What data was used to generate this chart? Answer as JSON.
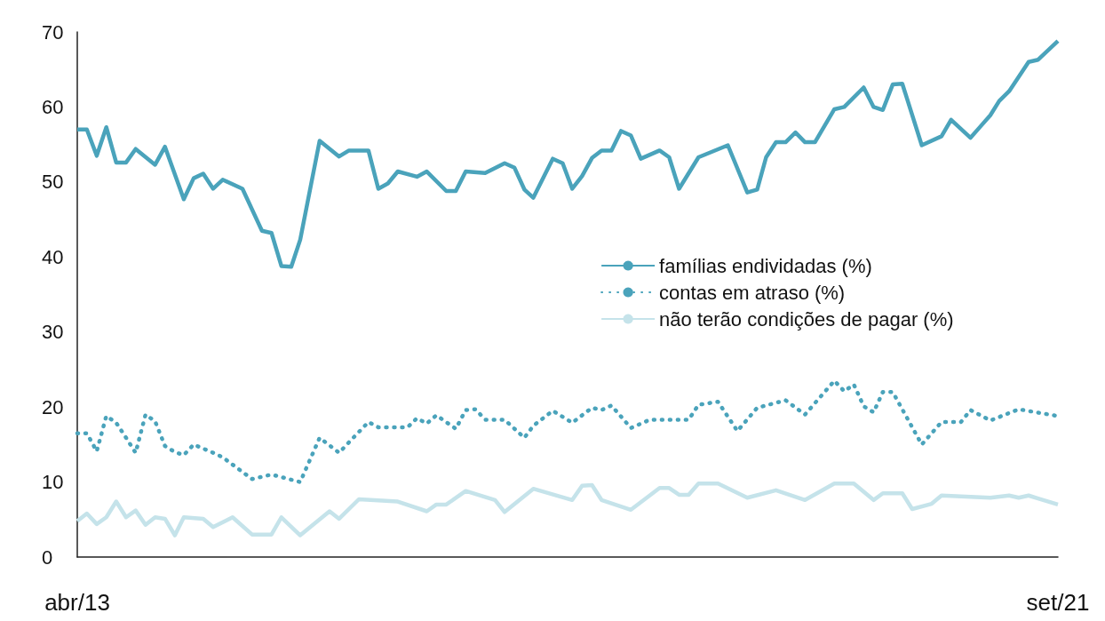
{
  "chart_data": {
    "type": "line",
    "xlim": [
      "2013-04",
      "2021-09"
    ],
    "xticks": [
      {
        "value": "2013-04",
        "label": "abr/13"
      },
      {
        "value": "2021-09",
        "label": "set/21"
      }
    ],
    "ylim": [
      0,
      70
    ],
    "yticks": [
      0,
      10,
      20,
      30,
      40,
      50,
      60,
      70
    ],
    "grid": false,
    "legend": "right",
    "marker": "none",
    "series": [
      {
        "name": "famílias endividadas (%)",
        "color": "#4aa3bb",
        "line_style": "solid",
        "x": [
          "2013-04",
          "2013-05",
          "2013-06",
          "2013-07",
          "2013-08",
          "2013-09",
          "2013-10",
          "2013-12",
          "2014-01",
          "2014-03",
          "2014-04",
          "2014-05",
          "2014-06",
          "2014-07",
          "2014-09",
          "2014-11",
          "2014-12",
          "2015-01",
          "2015-02",
          "2015-03",
          "2015-05",
          "2015-07",
          "2015-08",
          "2015-10",
          "2015-11",
          "2015-12",
          "2016-01",
          "2016-03",
          "2016-04",
          "2016-06",
          "2016-07",
          "2016-08",
          "2016-10",
          "2016-12",
          "2017-01",
          "2017-02",
          "2017-03",
          "2017-05",
          "2017-06",
          "2017-07",
          "2017-08",
          "2017-09",
          "2017-10",
          "2017-11",
          "2017-12",
          "2018-01",
          "2018-02",
          "2018-04",
          "2018-05",
          "2018-06",
          "2018-08",
          "2018-11",
          "2019-01",
          "2019-02",
          "2019-03",
          "2019-04",
          "2019-05",
          "2019-06",
          "2019-07",
          "2019-08",
          "2019-10",
          "2019-11",
          "2020-01",
          "2020-02",
          "2020-03",
          "2020-04",
          "2020-05",
          "2020-07",
          "2020-09",
          "2020-10",
          "2020-12",
          "2021-01",
          "2021-02",
          "2021-03",
          "2021-04",
          "2021-06",
          "2021-07",
          "2021-09"
        ],
        "values": [
          57.0,
          57.0,
          53.5,
          57.3,
          52.6,
          52.6,
          54.4,
          52.3,
          54.7,
          47.7,
          50.5,
          51.1,
          49.1,
          50.3,
          49.1,
          43.5,
          43.2,
          38.8,
          38.7,
          42.3,
          55.5,
          53.4,
          54.2,
          54.2,
          49.1,
          49.8,
          51.4,
          50.7,
          51.4,
          48.8,
          48.8,
          51.4,
          51.2,
          52.5,
          51.9,
          49.0,
          47.9,
          53.1,
          52.5,
          49.1,
          50.8,
          53.2,
          54.2,
          54.2,
          56.8,
          56.2,
          53.1,
          54.2,
          53.3,
          49.1,
          53.3,
          54.9,
          48.6,
          49.0,
          53.3,
          55.3,
          55.3,
          56.6,
          55.3,
          55.3,
          59.7,
          60.0,
          62.6,
          60.0,
          59.6,
          63.0,
          63.1,
          54.9,
          56.1,
          58.3,
          55.9,
          57.4,
          58.9,
          60.8,
          62.1,
          66.0,
          66.3,
          68.8
        ]
      },
      {
        "name": "contas em atraso (%)",
        "color": "#4aa3bb",
        "line_style": "dotted",
        "x": [
          "2013-04",
          "2013-05",
          "2013-06",
          "2013-07",
          "2013-08",
          "2013-09",
          "2013-10",
          "2013-11",
          "2013-12",
          "2014-01",
          "2014-02",
          "2014-03",
          "2014-04",
          "2014-06",
          "2014-07",
          "2014-10",
          "2014-12",
          "2015-03",
          "2015-05",
          "2015-07",
          "2015-08",
          "2015-10",
          "2015-11",
          "2016-02",
          "2016-03",
          "2016-04",
          "2016-05",
          "2016-07",
          "2016-08",
          "2016-09",
          "2016-10",
          "2016-12",
          "2017-02",
          "2017-03",
          "2017-05",
          "2017-07",
          "2017-09",
          "2017-10",
          "2017-11",
          "2018-01",
          "2018-03",
          "2018-07",
          "2018-08",
          "2018-10",
          "2018-12",
          "2019-02",
          "2019-05",
          "2019-07",
          "2019-10",
          "2019-11",
          "2019-12",
          "2020-01",
          "2020-02",
          "2020-03",
          "2020-04",
          "2020-07",
          "2020-09",
          "2020-11",
          "2020-12",
          "2021-02",
          "2021-05",
          "2021-09"
        ],
        "values": [
          16.5,
          16.5,
          14.1,
          18.8,
          17.9,
          15.9,
          13.9,
          19.0,
          18.1,
          14.8,
          14.0,
          13.6,
          15.0,
          13.9,
          13.3,
          10.4,
          11.0,
          10.0,
          15.9,
          13.9,
          15.3,
          18.0,
          17.3,
          17.3,
          18.5,
          17.8,
          18.9,
          17.1,
          19.6,
          19.7,
          18.3,
          18.3,
          15.9,
          17.5,
          19.5,
          17.9,
          19.9,
          19.6,
          20.2,
          17.2,
          18.3,
          18.3,
          20.3,
          20.7,
          16.8,
          19.9,
          20.9,
          19.0,
          23.5,
          22.1,
          23.0,
          20.1,
          19.3,
          22.0,
          22.0,
          15.0,
          18.0,
          18.0,
          19.6,
          18.2,
          19.7,
          18.8
        ]
      },
      {
        "name": "não terão condições de pagar (%)",
        "color": "#c5e3ea",
        "line_style": "solid",
        "x": [
          "2013-04",
          "2013-05",
          "2013-06",
          "2013-07",
          "2013-08",
          "2013-09",
          "2013-10",
          "2013-11",
          "2013-12",
          "2014-01",
          "2014-02",
          "2014-03",
          "2014-05",
          "2014-06",
          "2014-08",
          "2014-10",
          "2014-12",
          "2015-01",
          "2015-03",
          "2015-06",
          "2015-07",
          "2015-09",
          "2016-01",
          "2016-04",
          "2016-05",
          "2016-06",
          "2016-08",
          "2016-11",
          "2016-12",
          "2017-03",
          "2017-07",
          "2017-08",
          "2017-09",
          "2017-10",
          "2018-01",
          "2018-04",
          "2018-05",
          "2018-06",
          "2018-07",
          "2018-08",
          "2018-10",
          "2019-01",
          "2019-04",
          "2019-07",
          "2019-10",
          "2019-12",
          "2020-02",
          "2020-03",
          "2020-05",
          "2020-06",
          "2020-08",
          "2020-09",
          "2021-02",
          "2021-04",
          "2021-05",
          "2021-06",
          "2021-07",
          "2021-09"
        ],
        "values": [
          4.8,
          5.8,
          4.4,
          5.3,
          7.4,
          5.3,
          6.2,
          4.3,
          5.3,
          5.1,
          2.9,
          5.3,
          5.1,
          4.0,
          5.3,
          3.0,
          3.0,
          5.3,
          2.9,
          6.1,
          5.1,
          7.7,
          7.4,
          6.1,
          7.0,
          7.0,
          8.8,
          7.6,
          6.0,
          9.1,
          7.6,
          9.5,
          9.6,
          7.6,
          6.3,
          9.2,
          9.2,
          8.3,
          8.3,
          9.8,
          9.8,
          7.9,
          8.9,
          7.6,
          9.8,
          9.8,
          7.6,
          8.5,
          8.5,
          6.4,
          7.1,
          8.2,
          7.9,
          8.2,
          7.9,
          8.2,
          7.8,
          7.0
        ]
      }
    ]
  }
}
